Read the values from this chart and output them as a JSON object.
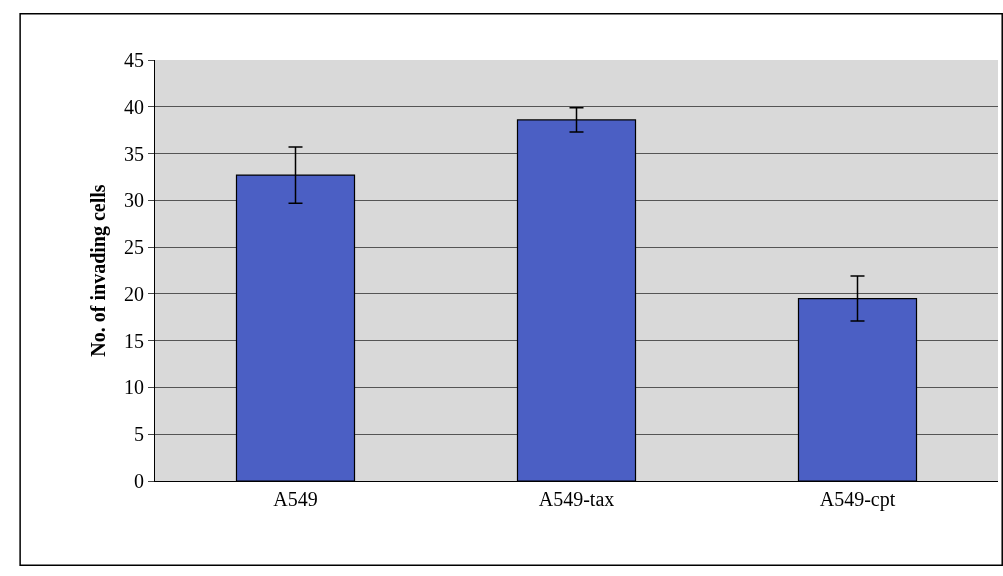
{
  "chart_data": {
    "type": "bar",
    "ylabel": "No. of invading cells",
    "categories": [
      "A549",
      "A549-tax",
      "A549-cpt"
    ],
    "values": [
      32.7,
      38.6,
      19.5
    ],
    "errors": [
      3,
      1.3,
      2.4
    ],
    "color": "#4b5fc4",
    "ylim": [
      0,
      45
    ],
    "yticks": [
      0,
      5,
      10,
      15,
      20,
      25,
      30,
      35,
      40,
      45
    ],
    "grid": "y",
    "legend": false
  }
}
